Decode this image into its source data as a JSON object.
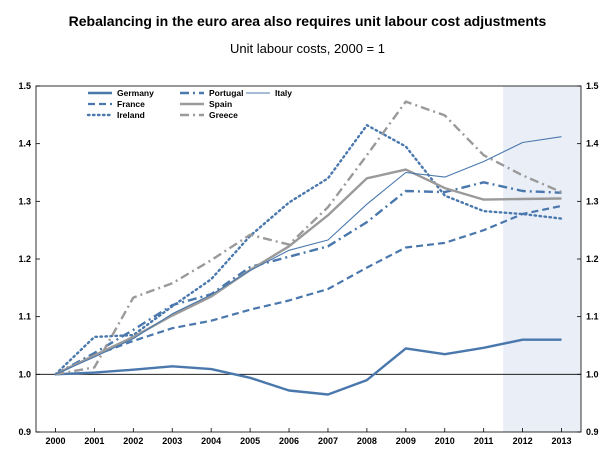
{
  "chart_data": {
    "type": "line",
    "title": "Rebalancing in the euro area also requires unit labour cost adjustments",
    "subtitle": "Unit labour costs, 2000 = 1",
    "x": [
      "2000",
      "2001",
      "2002",
      "2003",
      "2004",
      "2005",
      "2006",
      "2007",
      "2008",
      "2009",
      "2010",
      "2011",
      "2012",
      "2013"
    ],
    "ylim": [
      0.9,
      1.5
    ],
    "yticks": [
      "0.9",
      "1.0",
      "1.1",
      "1.2",
      "1.3",
      "1.4",
      "1.5"
    ],
    "shaded_region": [
      "2012",
      "2013"
    ],
    "reference_line": 1.0,
    "legend_position": "top-left",
    "colors": {
      "blue": "#4a78ad",
      "grey": "#9a9a9a",
      "shade": "#eaeef7"
    },
    "series": [
      {
        "name": "Germany",
        "color": "#4a78ad",
        "style": "solid",
        "width": 2.4,
        "values": [
          1.0,
          1.003,
          1.008,
          1.014,
          1.009,
          0.994,
          0.972,
          0.965,
          0.99,
          1.045,
          1.035,
          1.046,
          1.06,
          1.06
        ]
      },
      {
        "name": "France",
        "color": "#4a78ad",
        "style": "dashed",
        "width": 2.2,
        "values": [
          1.0,
          1.033,
          1.058,
          1.08,
          1.093,
          1.112,
          1.128,
          1.148,
          1.185,
          1.22,
          1.228,
          1.25,
          1.278,
          1.292
        ]
      },
      {
        "name": "Ireland",
        "color": "#4a78ad",
        "style": "dotted",
        "width": 2.4,
        "values": [
          1.0,
          1.065,
          1.068,
          1.118,
          1.165,
          1.24,
          1.298,
          1.34,
          1.432,
          1.395,
          1.31,
          1.283,
          1.278,
          1.27
        ]
      },
      {
        "name": "Portugal",
        "color": "#4a78ad",
        "style": "dashdot",
        "width": 2.4,
        "values": [
          1.0,
          1.037,
          1.077,
          1.12,
          1.139,
          1.186,
          1.204,
          1.222,
          1.264,
          1.318,
          1.316,
          1.333,
          1.318,
          1.315
        ]
      },
      {
        "name": "Spain",
        "color": "#9a9a9a",
        "style": "solid",
        "width": 2.4,
        "values": [
          1.0,
          1.033,
          1.065,
          1.102,
          1.135,
          1.181,
          1.222,
          1.276,
          1.34,
          1.355,
          1.323,
          1.303,
          1.304,
          1.305
        ]
      },
      {
        "name": "Greece",
        "color": "#9a9a9a",
        "style": "dashdot",
        "width": 2.4,
        "values": [
          1.0,
          1.012,
          1.133,
          1.158,
          1.198,
          1.242,
          1.225,
          1.29,
          1.38,
          1.473,
          1.449,
          1.38,
          1.345,
          1.316
        ]
      },
      {
        "name": "Italy",
        "color": "#4a78ad",
        "style": "solid",
        "width": 1.1,
        "values": [
          1.0,
          1.03,
          1.062,
          1.105,
          1.138,
          1.18,
          1.215,
          1.233,
          1.295,
          1.35,
          1.342,
          1.369,
          1.402,
          1.412
        ]
      }
    ]
  }
}
